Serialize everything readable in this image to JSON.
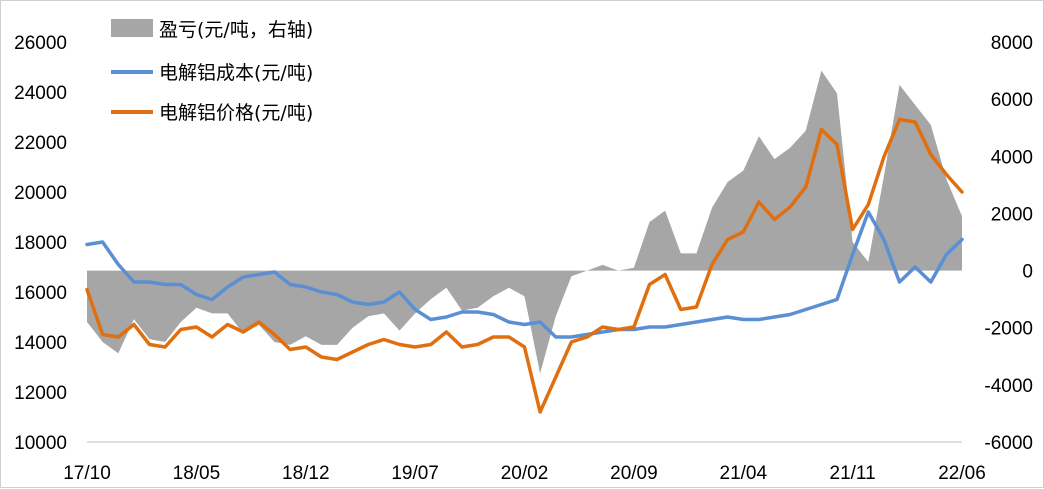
{
  "chart_data": {
    "type": "line",
    "title": "",
    "legend": {
      "placement": "top-left",
      "entries": [
        {
          "label": "盈亏(元/吨，右轴)",
          "color": "#a6a6a6",
          "kind": "area"
        },
        {
          "label": "电解铝成本(元/吨)",
          "color": "#5b8fd4",
          "kind": "line"
        },
        {
          "label": "电解铝价格(元/吨)",
          "color": "#e0700f",
          "kind": "line"
        }
      ]
    },
    "x_ticks": [
      "17/10",
      "18/05",
      "18/12",
      "19/07",
      "20/02",
      "20/09",
      "21/04",
      "21/11",
      "22/06"
    ],
    "x_range": [
      "2017-10",
      "2022-06"
    ],
    "y_left": {
      "min": 10000,
      "max": 26000,
      "ticks": [
        "10000",
        "12000",
        "14000",
        "16000",
        "18000",
        "20000",
        "22000",
        "24000",
        "26000"
      ]
    },
    "y_right": {
      "min": -6000,
      "max": 8000,
      "ticks": [
        "-6000",
        "-4000",
        "-2000",
        "0",
        "2000",
        "4000",
        "6000",
        "8000"
      ]
    },
    "grid": false,
    "series": [
      {
        "name": "电解铝成本(元/吨)",
        "axis": "left",
        "color": "#5b8fd4",
        "x": [
          "2017-10",
          "2017-11",
          "2017-12",
          "2018-01",
          "2018-02",
          "2018-03",
          "2018-04",
          "2018-05",
          "2018-06",
          "2018-07",
          "2018-08",
          "2018-09",
          "2018-10",
          "2018-11",
          "2018-12",
          "2019-01",
          "2019-02",
          "2019-03",
          "2019-04",
          "2019-05",
          "2019-06",
          "2019-07",
          "2019-08",
          "2019-09",
          "2019-10",
          "2019-11",
          "2019-12",
          "2020-01",
          "2020-02",
          "2020-03",
          "2020-04",
          "2020-05",
          "2020-06",
          "2020-07",
          "2020-08",
          "2020-09",
          "2020-10",
          "2020-11",
          "2020-12",
          "2021-01",
          "2021-02",
          "2021-03",
          "2021-04",
          "2021-05",
          "2021-06",
          "2021-07",
          "2021-08",
          "2021-09",
          "2021-10",
          "2021-11",
          "2021-12",
          "2022-01",
          "2022-02",
          "2022-03",
          "2022-04",
          "2022-05",
          "2022-06"
        ],
        "y": [
          17900,
          18000,
          17100,
          16400,
          16400,
          16300,
          16300,
          15900,
          15700,
          16200,
          16600,
          16700,
          16800,
          16300,
          16200,
          16000,
          15900,
          15600,
          15500,
          15600,
          16000,
          15300,
          14900,
          15000,
          15200,
          15200,
          15100,
          14800,
          14700,
          14800,
          14200,
          14200,
          14300,
          14400,
          14500,
          14500,
          14600,
          14600,
          14700,
          14800,
          14900,
          15000,
          14900,
          14900,
          15000,
          15100,
          15300,
          15500,
          15700,
          17500,
          19200,
          18100,
          16400,
          17000,
          16400,
          17500,
          18100
        ]
      },
      {
        "name": "电解铝价格(元/吨)",
        "axis": "left",
        "color": "#e0700f",
        "x": [
          "2017-10",
          "2017-11",
          "2017-12",
          "2018-01",
          "2018-02",
          "2018-03",
          "2018-04",
          "2018-05",
          "2018-06",
          "2018-07",
          "2018-08",
          "2018-09",
          "2018-10",
          "2018-11",
          "2018-12",
          "2019-01",
          "2019-02",
          "2019-03",
          "2019-04",
          "2019-05",
          "2019-06",
          "2019-07",
          "2019-08",
          "2019-09",
          "2019-10",
          "2019-11",
          "2019-12",
          "2020-01",
          "2020-02",
          "2020-03",
          "2020-04",
          "2020-05",
          "2020-06",
          "2020-07",
          "2020-08",
          "2020-09",
          "2020-10",
          "2020-11",
          "2020-12",
          "2021-01",
          "2021-02",
          "2021-03",
          "2021-04",
          "2021-05",
          "2021-06",
          "2021-07",
          "2021-08",
          "2021-09",
          "2021-10",
          "2021-11",
          "2021-12",
          "2022-01",
          "2022-02",
          "2022-03",
          "2022-04",
          "2022-05",
          "2022-06"
        ],
        "y": [
          16100,
          14300,
          14200,
          14700,
          13900,
          13800,
          14500,
          14600,
          14200,
          14700,
          14400,
          14800,
          14300,
          13700,
          13800,
          13400,
          13300,
          13600,
          13900,
          14100,
          13900,
          13800,
          13900,
          14400,
          13800,
          13900,
          14200,
          14200,
          13800,
          11200,
          12600,
          14000,
          14200,
          14600,
          14500,
          14600,
          16300,
          16700,
          15300,
          15400,
          17100,
          18100,
          18400,
          19600,
          18900,
          19400,
          20200,
          22500,
          21900,
          18500,
          19500,
          21400,
          22900,
          22800,
          21500,
          20700,
          20000
        ]
      },
      {
        "name": "盈亏(元/吨，右轴)",
        "axis": "right",
        "color": "#a6a6a6",
        "x": [
          "2017-10",
          "2017-11",
          "2017-12",
          "2018-01",
          "2018-02",
          "2018-03",
          "2018-04",
          "2018-05",
          "2018-06",
          "2018-07",
          "2018-08",
          "2018-09",
          "2018-10",
          "2018-11",
          "2018-12",
          "2019-01",
          "2019-02",
          "2019-03",
          "2019-04",
          "2019-05",
          "2019-06",
          "2019-07",
          "2019-08",
          "2019-09",
          "2019-10",
          "2019-11",
          "2019-12",
          "2020-01",
          "2020-02",
          "2020-03",
          "2020-04",
          "2020-05",
          "2020-06",
          "2020-07",
          "2020-08",
          "2020-09",
          "2020-10",
          "2020-11",
          "2020-12",
          "2021-01",
          "2021-02",
          "2021-03",
          "2021-04",
          "2021-05",
          "2021-06",
          "2021-07",
          "2021-08",
          "2021-09",
          "2021-10",
          "2021-11",
          "2021-12",
          "2022-01",
          "2022-02",
          "2022-03",
          "2022-04",
          "2022-05",
          "2022-06"
        ],
        "y": [
          -1800,
          -2500,
          -2900,
          -1700,
          -2400,
          -2500,
          -1800,
          -1300,
          -1500,
          -1500,
          -2200,
          -1900,
          -2500,
          -2600,
          -2300,
          -2600,
          -2600,
          -2000,
          -1600,
          -1500,
          -2100,
          -1500,
          -1000,
          -600,
          -1400,
          -1300,
          -900,
          -600,
          -900,
          -3600,
          -1600,
          -200,
          0,
          200,
          0,
          100,
          1700,
          2100,
          600,
          600,
          2200,
          3100,
          3500,
          4700,
          3900,
          4300,
          4900,
          7000,
          6200,
          1000,
          300,
          3300,
          6500,
          5800,
          5100,
          3200,
          1900
        ]
      }
    ]
  }
}
